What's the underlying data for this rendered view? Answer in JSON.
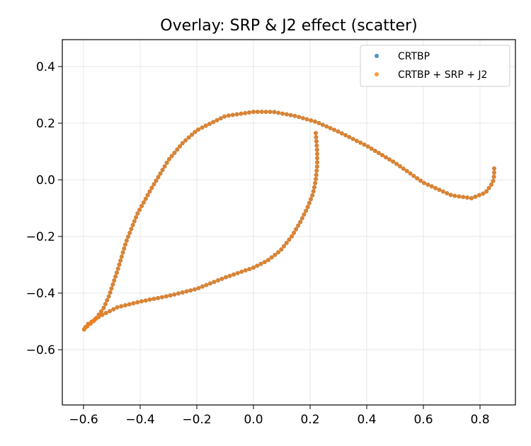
{
  "chart_data": {
    "type": "scatter",
    "title": "Overlay: SRP & J2 effect (scatter)",
    "xlabel": "",
    "ylabel": "",
    "xlim": [
      -0.675,
      0.925
    ],
    "ylim": [
      -0.795,
      0.495
    ],
    "xticks": [
      -0.6,
      -0.4,
      -0.2,
      0.0,
      0.2,
      0.4,
      0.6,
      0.8
    ],
    "xtick_labels": [
      "−0.6",
      "−0.4",
      "−0.2",
      "0.0",
      "0.2",
      "0.4",
      "0.6",
      "0.8"
    ],
    "yticks": [
      -0.6,
      -0.4,
      -0.2,
      0.0,
      0.2,
      0.4
    ],
    "ytick_labels": [
      "−0.6",
      "−0.4",
      "−0.2",
      "0.0",
      "0.2",
      "0.4"
    ],
    "grid": true,
    "legend_position": "top-right",
    "series": [
      {
        "name": "CRTBP",
        "color": "#1f77b4",
        "path_points": [
          [
            0.22,
            0.165
          ],
          [
            0.225,
            0.1
          ],
          [
            0.225,
            0.05
          ],
          [
            0.22,
            0.0
          ],
          [
            0.21,
            -0.05
          ],
          [
            0.19,
            -0.1
          ],
          [
            0.165,
            -0.15
          ],
          [
            0.135,
            -0.2
          ],
          [
            0.095,
            -0.25
          ],
          [
            0.05,
            -0.285
          ],
          [
            0.0,
            -0.31
          ],
          [
            -0.1,
            -0.345
          ],
          [
            -0.2,
            -0.385
          ],
          [
            -0.3,
            -0.41
          ],
          [
            -0.4,
            -0.43
          ],
          [
            -0.48,
            -0.45
          ],
          [
            -0.54,
            -0.48
          ],
          [
            -0.585,
            -0.51
          ],
          [
            -0.6,
            -0.53
          ],
          [
            -0.59,
            -0.52
          ],
          [
            -0.56,
            -0.495
          ],
          [
            -0.53,
            -0.455
          ],
          [
            -0.51,
            -0.41
          ],
          [
            -0.48,
            -0.32
          ],
          [
            -0.45,
            -0.22
          ],
          [
            -0.41,
            -0.12
          ],
          [
            -0.36,
            -0.03
          ],
          [
            -0.3,
            0.07
          ],
          [
            -0.25,
            0.13
          ],
          [
            -0.2,
            0.175
          ],
          [
            -0.1,
            0.225
          ],
          [
            0.0,
            0.24
          ],
          [
            0.07,
            0.24
          ],
          [
            0.15,
            0.225
          ],
          [
            0.22,
            0.205
          ],
          [
            0.3,
            0.17
          ],
          [
            0.4,
            0.12
          ],
          [
            0.5,
            0.06
          ],
          [
            0.6,
            -0.01
          ],
          [
            0.7,
            -0.055
          ],
          [
            0.77,
            -0.065
          ],
          [
            0.82,
            -0.045
          ],
          [
            0.845,
            -0.01
          ],
          [
            0.85,
            0.015
          ],
          [
            0.85,
            0.04
          ]
        ]
      },
      {
        "name": "CRTBP + SRP + J2",
        "color": "#ff7f0e",
        "path_points": [
          [
            0.22,
            0.165
          ],
          [
            0.225,
            0.1
          ],
          [
            0.225,
            0.05
          ],
          [
            0.22,
            0.0
          ],
          [
            0.21,
            -0.05
          ],
          [
            0.19,
            -0.1
          ],
          [
            0.165,
            -0.15
          ],
          [
            0.135,
            -0.2
          ],
          [
            0.095,
            -0.25
          ],
          [
            0.05,
            -0.285
          ],
          [
            0.0,
            -0.31
          ],
          [
            -0.1,
            -0.345
          ],
          [
            -0.2,
            -0.385
          ],
          [
            -0.3,
            -0.41
          ],
          [
            -0.4,
            -0.43
          ],
          [
            -0.48,
            -0.45
          ],
          [
            -0.54,
            -0.48
          ],
          [
            -0.585,
            -0.51
          ],
          [
            -0.6,
            -0.53
          ],
          [
            -0.59,
            -0.52
          ],
          [
            -0.56,
            -0.495
          ],
          [
            -0.53,
            -0.455
          ],
          [
            -0.51,
            -0.41
          ],
          [
            -0.48,
            -0.32
          ],
          [
            -0.45,
            -0.22
          ],
          [
            -0.41,
            -0.12
          ],
          [
            -0.36,
            -0.03
          ],
          [
            -0.3,
            0.07
          ],
          [
            -0.25,
            0.13
          ],
          [
            -0.2,
            0.175
          ],
          [
            -0.1,
            0.225
          ],
          [
            0.0,
            0.24
          ],
          [
            0.07,
            0.24
          ],
          [
            0.15,
            0.225
          ],
          [
            0.22,
            0.205
          ],
          [
            0.3,
            0.17
          ],
          [
            0.4,
            0.12
          ],
          [
            0.5,
            0.06
          ],
          [
            0.6,
            -0.01
          ],
          [
            0.7,
            -0.055
          ],
          [
            0.77,
            -0.065
          ],
          [
            0.82,
            -0.045
          ],
          [
            0.845,
            -0.01
          ],
          [
            0.85,
            0.015
          ],
          [
            0.85,
            0.04
          ]
        ]
      }
    ]
  }
}
